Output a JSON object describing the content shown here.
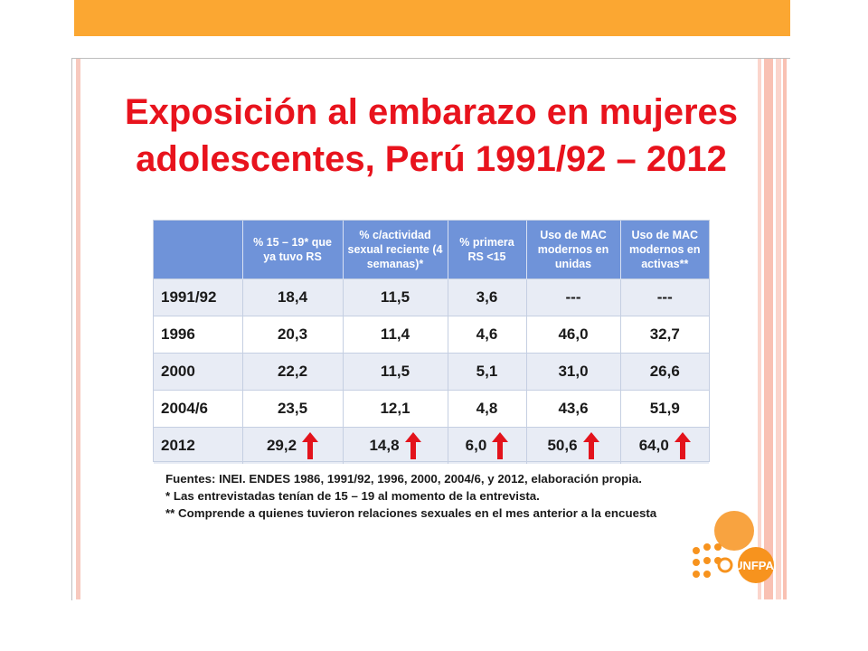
{
  "colors": {
    "accent_bar": "#fba732",
    "title": "#e8131d",
    "header_bg": "#6f93d9",
    "row_band": "#e8ecf5",
    "arrow": "#e3131c",
    "logo_orange": "#f7931e"
  },
  "slide": {
    "title_line1": "Exposición al embarazo en mujeres",
    "title_line2": "adolescentes, Perú 1991/92 – 2012"
  },
  "table": {
    "headers": [
      "",
      "% 15 – 19* que ya tuvo RS",
      "% c/actividad sexual reciente (4 semanas)*",
      "% primera RS <15",
      "Uso de MAC modernos en unidas",
      "Uso de MAC modernos en activas**"
    ],
    "rows": [
      {
        "year": "1991/92",
        "values": [
          "18,4",
          "11,5",
          "3,6",
          "---",
          "---"
        ]
      },
      {
        "year": "1996",
        "values": [
          "20,3",
          "11,4",
          "4,6",
          "46,0",
          "32,7"
        ]
      },
      {
        "year": "2000",
        "values": [
          "22,2",
          "11,5",
          "5,1",
          "31,0",
          "26,6"
        ]
      },
      {
        "year": "2004/6",
        "values": [
          "23,5",
          "12,1",
          "4,8",
          "43,6",
          "51,9"
        ]
      },
      {
        "year": "2012",
        "values": [
          "29,2",
          "14,8",
          "6,0",
          "50,6",
          "64,0"
        ],
        "arrows": "up-arrow-icon"
      }
    ]
  },
  "notes": [
    "Fuentes: INEI. ENDES 1986, 1991/92, 1996, 2000, 2004/6, y 2012, elaboración propia.",
    "* Las entrevistadas tenían de 15 – 19 al momento de la entrevista.",
    "** Comprende a quienes tuvieron relaciones sexuales en el mes anterior a la encuesta"
  ],
  "logo": {
    "text": "UNFPA",
    "icon": "unfpa-logo"
  }
}
